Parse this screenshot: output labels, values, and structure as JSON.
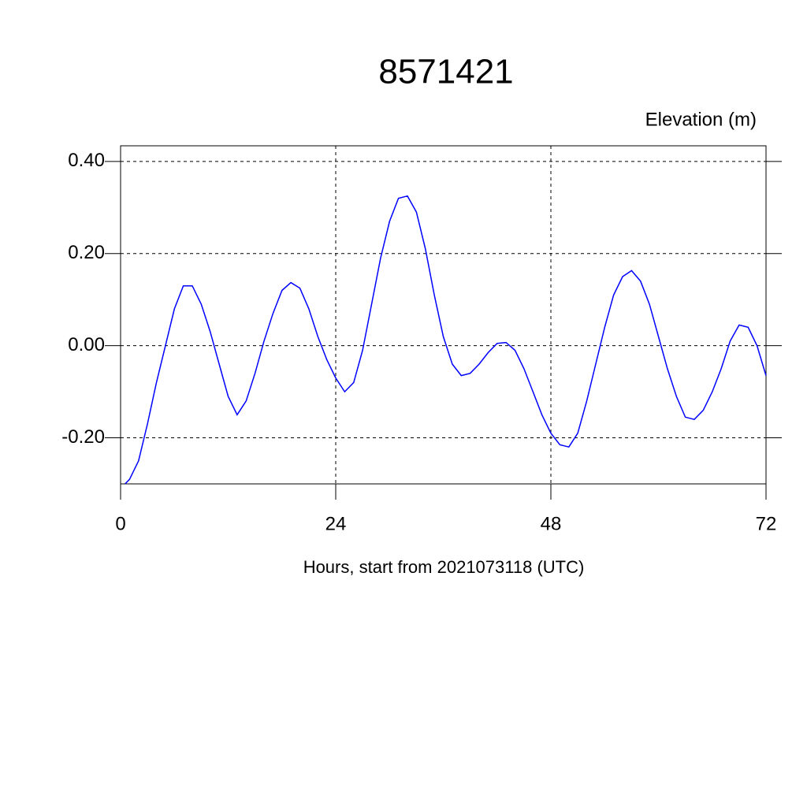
{
  "chart_data": {
    "type": "line",
    "title": "8571421",
    "y_axis_label": "Elevation (m)",
    "x_axis_label": "Hours, start from 2021073118 (UTC)",
    "x": [
      0.5,
      1,
      2,
      3,
      4,
      5,
      6,
      7,
      8,
      9,
      10,
      11,
      12,
      13,
      14,
      15,
      16,
      17,
      18,
      19,
      20,
      21,
      22,
      23,
      24,
      25,
      26,
      27,
      28,
      29,
      30,
      31,
      32,
      33,
      34,
      35,
      36,
      37,
      38,
      39,
      40,
      41,
      42,
      43,
      44,
      45,
      46,
      47,
      48,
      49,
      50,
      51,
      52,
      53,
      54,
      55,
      56,
      57,
      58,
      59,
      60,
      61,
      62,
      63,
      64,
      65,
      66,
      67,
      68,
      69,
      70,
      71,
      72
    ],
    "series": [
      {
        "name": "Elevation",
        "color": "#0000ff",
        "values": [
          -0.3,
          -0.29,
          -0.25,
          -0.17,
          -0.08,
          0.0,
          0.08,
          0.13,
          0.13,
          0.09,
          0.03,
          -0.04,
          -0.11,
          -0.15,
          -0.12,
          -0.06,
          0.01,
          0.07,
          0.12,
          0.137,
          0.125,
          0.08,
          0.02,
          -0.03,
          -0.07,
          -0.1,
          -0.08,
          -0.01,
          0.09,
          0.19,
          0.27,
          0.32,
          0.325,
          0.29,
          0.21,
          0.11,
          0.02,
          -0.04,
          -0.065,
          -0.06,
          -0.04,
          -0.015,
          0.005,
          0.007,
          -0.01,
          -0.05,
          -0.1,
          -0.15,
          -0.19,
          -0.215,
          -0.22,
          -0.19,
          -0.12,
          -0.04,
          0.04,
          0.11,
          0.15,
          0.163,
          0.14,
          0.09,
          0.02,
          -0.05,
          -0.11,
          -0.155,
          -0.16,
          -0.14,
          -0.1,
          -0.05,
          0.01,
          0.045,
          0.04,
          0.0,
          -0.065
        ]
      }
    ],
    "xlim": [
      0,
      72
    ],
    "xticks": [
      0,
      24,
      48,
      72
    ],
    "ylim": [
      -0.3,
      0.434
    ],
    "yticks": [
      {
        "value": -0.2,
        "label": "-0.20"
      },
      {
        "value": 0,
        "label": "0.00"
      },
      {
        "value": 0.2,
        "label": "0.20"
      },
      {
        "value": 0.4,
        "label": "0.40"
      }
    ],
    "grid": true
  }
}
